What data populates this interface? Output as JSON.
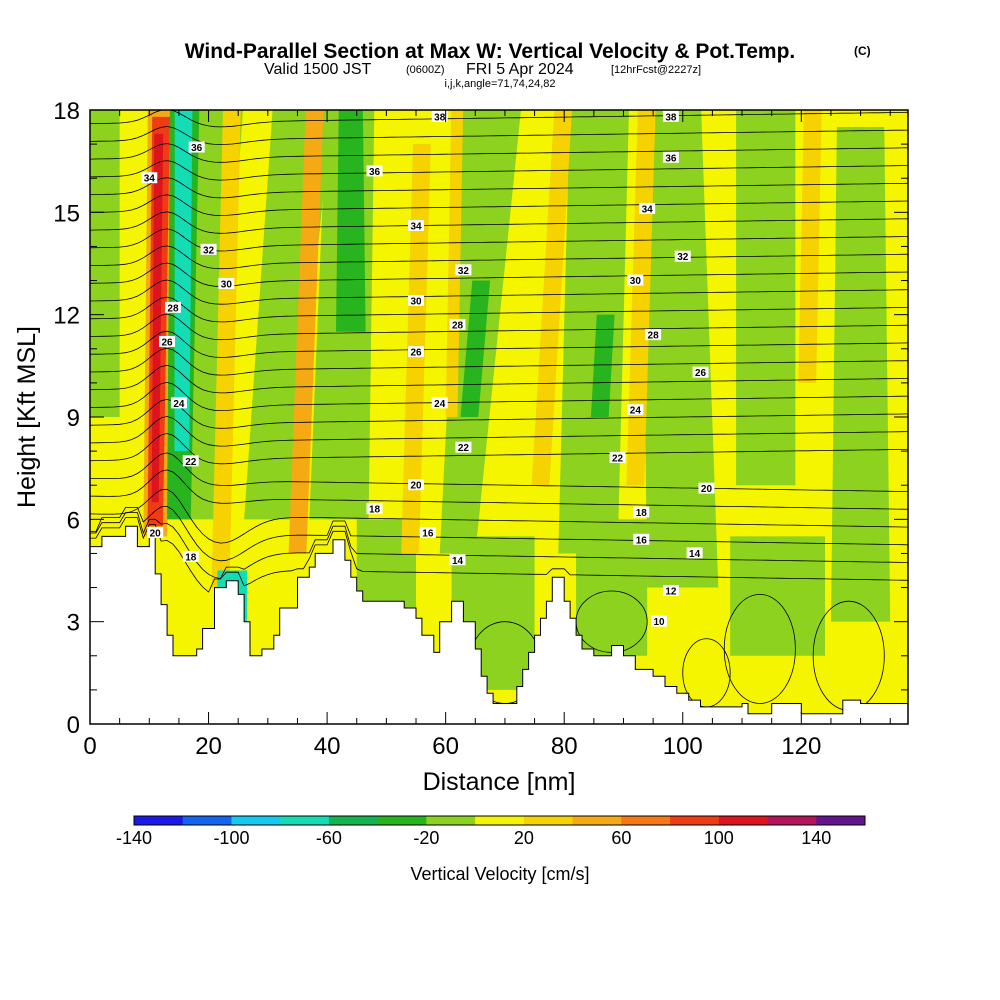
{
  "chart_data": {
    "type": "heatmap",
    "title": "Wind-Parallel Section at Max W: Vertical Velocity & Pot.Temp.",
    "title_unit": "(C)",
    "subtitle_main": "Valid 1500 JST",
    "subtitle_utc": "(0600Z)",
    "subtitle_date": "FRI 5 Apr 2024",
    "subtitle_fcst": "[12hrFcst@2227z]",
    "subtitle_ijk": "i,j,k,angle=71,74,24,82",
    "xlabel": "Distance [nm]",
    "ylabel": "Height [Kft MSL]",
    "xlim": [
      0,
      138
    ],
    "ylim": [
      0,
      18
    ],
    "x_ticks": [
      "0",
      "20",
      "40",
      "60",
      "80",
      "100",
      "120"
    ],
    "y_ticks": [
      "0",
      "3",
      "6",
      "9",
      "12",
      "15",
      "18"
    ],
    "colorbar": {
      "label": "Vertical Velocity [cm/s]",
      "range": [
        -140,
        160
      ],
      "tick_labels": [
        "-140",
        "-100",
        "-60",
        "-20",
        "20",
        "60",
        "100",
        "140"
      ],
      "colors": [
        "#1a1ae6",
        "#1464f0",
        "#14c8f0",
        "#14dcb4",
        "#14b450",
        "#28b41e",
        "#8cd21e",
        "#f5f500",
        "#f5d200",
        "#f5aa14",
        "#f57814",
        "#f03c14",
        "#dc141e",
        "#b4145a",
        "#64148c"
      ]
    },
    "theta_contour_labels": [
      "10",
      "12",
      "14",
      "16",
      "18",
      "20",
      "22",
      "24",
      "26",
      "28",
      "30",
      "32",
      "34",
      "36",
      "38"
    ],
    "grid": false
  }
}
